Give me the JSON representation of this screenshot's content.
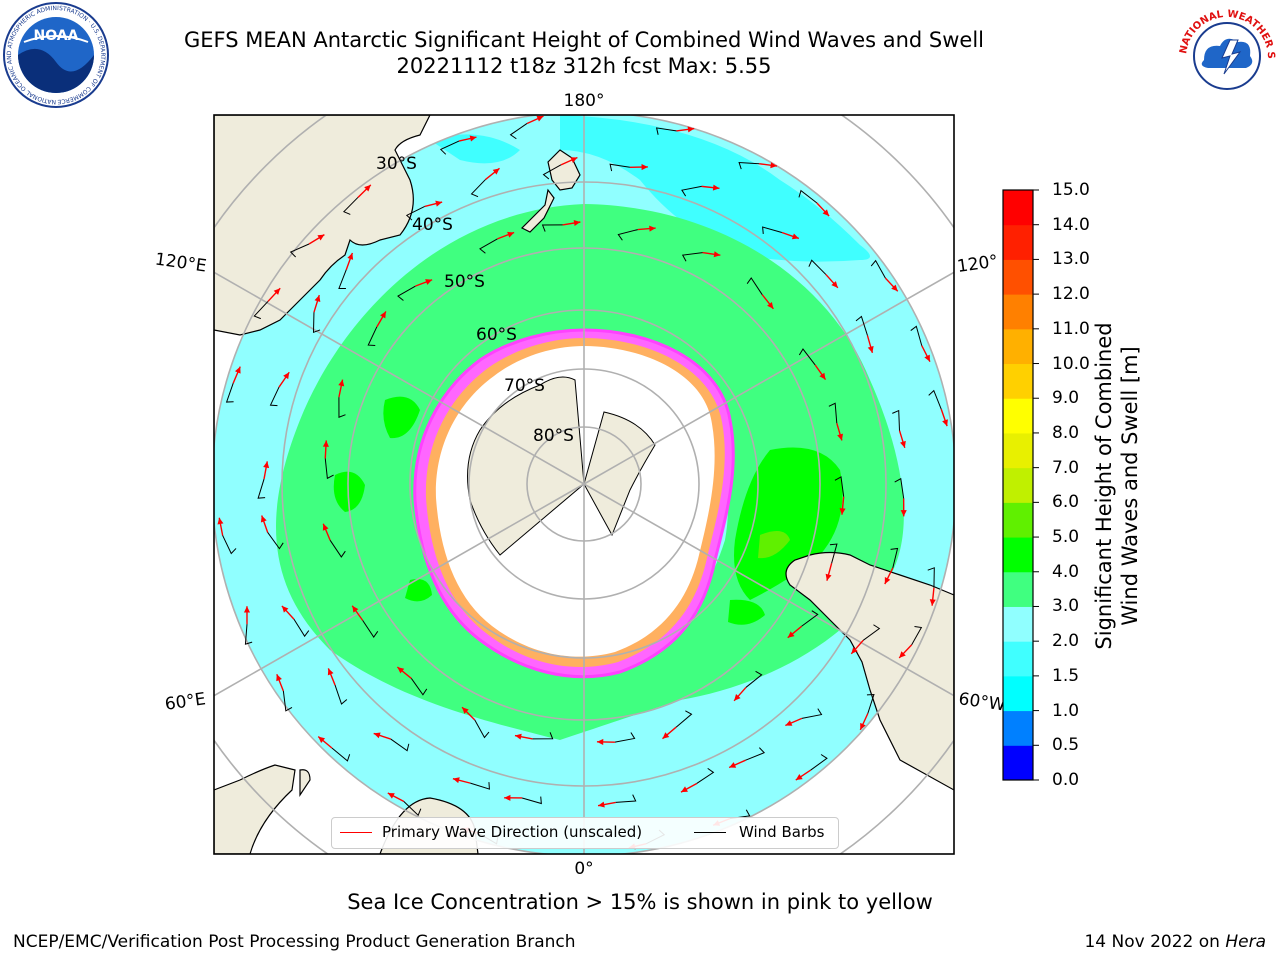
{
  "title": {
    "line1": "GEFS MEAN Antarctic Significant Height of Combined Wind Waves and Swell",
    "line2": "20221112 t18z 312h fcst   Max: 5.55"
  },
  "map": {
    "projection": "south-polar-stereographic",
    "lon_labels": [
      "180°",
      "120°E",
      "120°",
      "60°E",
      "60°W",
      "0°"
    ],
    "lat_labels": [
      "30°S",
      "40°S",
      "50°S",
      "60°S",
      "70°S",
      "80°S"
    ]
  },
  "legend": {
    "wave_label": "Primary Wave Direction (unscaled)",
    "wave_color": "#ff0000",
    "barb_label": "Wind Barbs",
    "barb_color": "#000000"
  },
  "colorbar": {
    "title_line1": "Significant Height of Combined",
    "title_line2": "Wind Waves and Swell [m]",
    "ticks": [
      "0.0",
      "0.5",
      "1.0",
      "1.5",
      "2.0",
      "3.0",
      "4.0",
      "5.0",
      "6.0",
      "7.0",
      "8.0",
      "9.0",
      "10.0",
      "11.0",
      "12.0",
      "13.0",
      "14.0",
      "15.0"
    ],
    "colors": [
      "#0000ff",
      "#0080ff",
      "#00ffff",
      "#40ffff",
      "#90ffff",
      "#40ff80",
      "#00ff00",
      "#60f000",
      "#c0f000",
      "#e8f000",
      "#ffff00",
      "#ffd000",
      "#ffb000",
      "#ff8000",
      "#ff5000",
      "#ff2000",
      "#ff0000"
    ]
  },
  "caption": "Sea Ice Concentration > 15% is shown in pink to yellow",
  "footer": {
    "left": "NCEP/EMC/Verification Post Processing Product Generation Branch",
    "right_prefix": "14 Nov 2022 on ",
    "right_host": "Hera"
  },
  "logos": {
    "noaa": "NOAA",
    "noaa_ring": "NATIONAL OCEANIC AND ATMOSPHERIC ADMINISTRATION · U.S. DEPARTMENT OF COMMERCE",
    "nws_ring": "NATIONAL WEATHER SERVICE"
  }
}
